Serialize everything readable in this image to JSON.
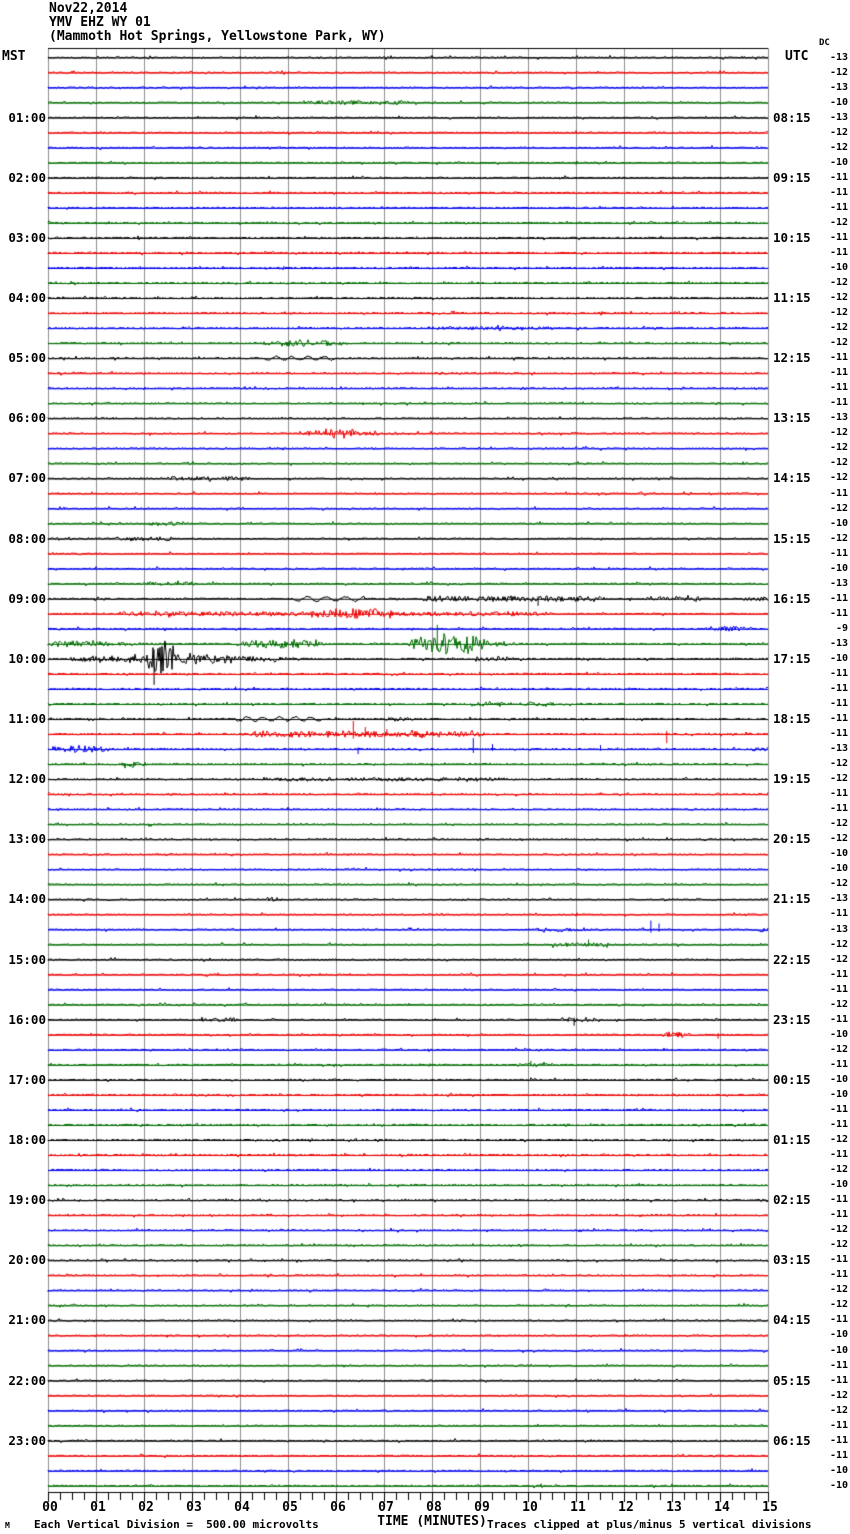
{
  "header": {
    "date": "Nov22,2014",
    "station": "YMV EHZ WY 01",
    "location": "(Mammoth Hot Springs, Yellowstone Park, WY)"
  },
  "axis": {
    "left_timezone": "MST",
    "right_timezone": "UTC",
    "dc_label": "DC",
    "x_title": "TIME (MINUTES)"
  },
  "footer": {
    "scale_note": "Each Vertical Division =  500.00 microvolts",
    "clip_note": "Traces clipped at plus/minus 5 vertical divisions",
    "corner_mark": "M"
  },
  "chart_data": {
    "type": "line",
    "subtype": "helicorder-seismogram",
    "title": "YMV EHZ WY 01 (Mammoth Hot Springs, Yellowstone Park, WY) Nov22,2014",
    "xlabel": "TIME (MINUTES)",
    "x_range": [
      0,
      15
    ],
    "x_ticks": [
      "00",
      "01",
      "02",
      "03",
      "04",
      "05",
      "06",
      "07",
      "08",
      "09",
      "10",
      "11",
      "12",
      "13",
      "14",
      "15"
    ],
    "grid": "vertical-minute-lines",
    "rows": 96,
    "minutes_per_row": 15,
    "label_every_n_rows": 4,
    "first_labeled_row": 4,
    "trace_colors_cycle": [
      "#000000",
      "#ee0000",
      "#0000ee",
      "#006d00"
    ],
    "left_time_labels": [
      "01:00",
      "02:00",
      "03:00",
      "04:00",
      "05:00",
      "06:00",
      "07:00",
      "08:00",
      "09:00",
      "10:00",
      "11:00",
      "12:00",
      "13:00",
      "14:00",
      "15:00",
      "16:00",
      "17:00",
      "18:00",
      "19:00",
      "20:00",
      "21:00",
      "22:00",
      "23:00"
    ],
    "right_time_labels": [
      "08:15",
      "09:15",
      "10:15",
      "11:15",
      "12:15",
      "13:15",
      "14:15",
      "15:15",
      "16:15",
      "17:15",
      "18:15",
      "19:15",
      "20:15",
      "21:15",
      "22:15",
      "23:15",
      "00:15",
      "01:15",
      "02:15",
      "03:15",
      "04:15",
      "05:15",
      "06:15"
    ],
    "dc_offsets": [
      -13,
      -12,
      -13,
      -10,
      -13,
      -12,
      -12,
      -10,
      -11,
      -11,
      -11,
      -12,
      -11,
      -11,
      -10,
      -12,
      -12,
      -12,
      -12,
      -12,
      -11,
      -11,
      -11,
      -11,
      -13,
      -12,
      -12,
      -12,
      -12,
      -11,
      -12,
      -10,
      -12,
      -11,
      -10,
      -13,
      -11,
      -11,
      -9,
      -13,
      -10,
      -11,
      -11,
      -11,
      -11,
      -11,
      -13,
      -12,
      -12,
      -11,
      -11,
      -12,
      -12,
      -10,
      -10,
      -12,
      -13,
      -11,
      -13,
      -12,
      -12,
      -11,
      -11,
      -12,
      -11,
      -10,
      -12,
      -11,
      -10,
      -10,
      -11,
      -11,
      -12,
      -11,
      -12,
      -10,
      -11,
      -11,
      -12,
      -12,
      -11,
      -11,
      -12,
      -12,
      -11,
      -10,
      -10,
      -11,
      -11,
      -12,
      -12,
      -11,
      -11,
      -11,
      -10,
      -10
    ],
    "events": [
      {
        "row": 3,
        "type": "fuzz",
        "t0": 5.3,
        "t1": 7.5,
        "amp": 1.6
      },
      {
        "row": 18,
        "type": "fuzz",
        "t0": 8.0,
        "t1": 10.5,
        "amp": 1.2
      },
      {
        "row": 19,
        "type": "burst",
        "t0": 4.4,
        "t1": 6.3,
        "amp": 3.2
      },
      {
        "row": 20,
        "type": "wave",
        "t0": 4.5,
        "t1": 6.0,
        "amp": 1.8,
        "freq": 3
      },
      {
        "row": 25,
        "type": "burst",
        "t0": 5.3,
        "t1": 6.7,
        "amp": 4.5
      },
      {
        "row": 25,
        "type": "decay",
        "t0": 6.7,
        "t1": 8.0,
        "amp": 1.8
      },
      {
        "row": 28,
        "type": "fuzz",
        "t0": 2.5,
        "t1": 4.2,
        "amp": 1.7
      },
      {
        "row": 31,
        "type": "fuzz",
        "t0": 2.1,
        "t1": 2.9,
        "amp": 1.8
      },
      {
        "row": 32,
        "type": "fuzz",
        "t0": 1.4,
        "t1": 2.6,
        "amp": 1.7
      },
      {
        "row": 35,
        "type": "fuzz",
        "t0": 2.0,
        "t1": 3.1,
        "amp": 1.7
      },
      {
        "row": 36,
        "type": "wave",
        "t0": 5.1,
        "t1": 6.6,
        "amp": 2.2,
        "freq": 2.5
      },
      {
        "row": 36,
        "type": "fuzz",
        "t0": 7.8,
        "t1": 11.6,
        "amp": 2.6
      },
      {
        "row": 36,
        "type": "spike",
        "t0": 10.2,
        "amp": 7,
        "dir": -1
      },
      {
        "row": 36,
        "type": "fuzz",
        "t0": 12.4,
        "t1": 13.6,
        "amp": 1.8
      },
      {
        "row": 36,
        "type": "fuzz",
        "t0": 14.5,
        "t1": 15,
        "amp": 1.8
      },
      {
        "row": 37,
        "type": "fuzz",
        "t0": 1.5,
        "t1": 10.5,
        "amp": 1.8
      },
      {
        "row": 37,
        "type": "burst",
        "t0": 5.4,
        "t1": 7.2,
        "amp": 4.0
      },
      {
        "row": 38,
        "type": "fuzz",
        "t0": 13.7,
        "t1": 14.5,
        "amp": 2.0
      },
      {
        "row": 39,
        "type": "decay",
        "t0": 0,
        "t1": 2.6,
        "amp": 3.4
      },
      {
        "row": 39,
        "type": "burst",
        "t0": 3.9,
        "t1": 5.8,
        "amp": 5.0
      },
      {
        "row": 39,
        "type": "burst",
        "t0": 7.5,
        "t1": 9.3,
        "amp": 12
      },
      {
        "row": 39,
        "type": "spike",
        "t0": 8.1,
        "amp": 19,
        "dir": 1
      },
      {
        "row": 39,
        "type": "decay",
        "t0": 9.3,
        "t1": 10.2,
        "amp": 2.5
      },
      {
        "row": 40,
        "type": "fuzz",
        "t0": 0.5,
        "t1": 2.0,
        "amp": 2.6
      },
      {
        "row": 40,
        "type": "burst",
        "t0": 2.0,
        "t1": 2.75,
        "amp": 19
      },
      {
        "row": 40,
        "type": "spike",
        "t0": 2.2,
        "amp": 26,
        "dir": -1
      },
      {
        "row": 40,
        "type": "decay",
        "t0": 2.75,
        "t1": 5.6,
        "amp": 6
      },
      {
        "row": 40,
        "type": "fuzz",
        "t0": 8.9,
        "t1": 9.7,
        "amp": 2.2
      },
      {
        "row": 42,
        "type": "spike",
        "t0": 3.9,
        "amp": 2.5,
        "dir": 1
      },
      {
        "row": 43,
        "type": "burst",
        "t0": 8.8,
        "t1": 9.7,
        "amp": 2.6
      },
      {
        "row": 43,
        "type": "burst",
        "t0": 9.8,
        "t1": 10.6,
        "amp": 2.6
      },
      {
        "row": 44,
        "type": "wave",
        "t0": 3.9,
        "t1": 5.7,
        "amp": 2.0,
        "freq": 3
      },
      {
        "row": 44,
        "type": "fuzz",
        "t0": 7.0,
        "t1": 7.5,
        "amp": 1.6
      },
      {
        "row": 45,
        "type": "fuzz",
        "t0": 4.2,
        "t1": 8.2,
        "amp": 2.8
      },
      {
        "row": 45,
        "type": "spike",
        "t0": 6.35,
        "amp": 13,
        "dir": 1
      },
      {
        "row": 45,
        "type": "spike",
        "t0": 6.6,
        "amp": 7,
        "dir": 1
      },
      {
        "row": 45,
        "type": "spike",
        "t0": 7.05,
        "amp": 5,
        "dir": 1
      },
      {
        "row": 45,
        "type": "fuzz",
        "t0": 8.3,
        "t1": 9.1,
        "amp": 2.6
      },
      {
        "row": 45,
        "type": "spike",
        "t0": 12.88,
        "amp": 9,
        "dir": -1
      },
      {
        "row": 46,
        "type": "fuzz",
        "t0": 0.1,
        "t1": 1.3,
        "amp": 2.8
      },
      {
        "row": 46,
        "type": "spike",
        "t0": 6.45,
        "amp": 5,
        "dir": -1
      },
      {
        "row": 46,
        "type": "spike",
        "t0": 8.85,
        "amp": 11,
        "dir": 1
      },
      {
        "row": 46,
        "type": "spike",
        "t0": 9.25,
        "amp": 5,
        "dir": 1
      },
      {
        "row": 46,
        "type": "spike",
        "t0": 11.5,
        "amp": 4,
        "dir": 1
      },
      {
        "row": 46,
        "type": "fuzz",
        "t0": 14.6,
        "t1": 15,
        "amp": 1.6
      },
      {
        "row": 47,
        "type": "burst",
        "t0": 1.5,
        "t1": 2.1,
        "amp": 3.2
      },
      {
        "row": 48,
        "type": "fuzz",
        "t0": 4.5,
        "t1": 9.5,
        "amp": 1.4
      },
      {
        "row": 56,
        "type": "burst",
        "t0": 4.5,
        "t1": 4.9,
        "amp": 2.4
      },
      {
        "row": 58,
        "type": "fuzz",
        "t0": 10.2,
        "t1": 11.3,
        "amp": 1.5
      },
      {
        "row": 58,
        "type": "spike",
        "t0": 12.55,
        "amp": 9,
        "dir": 1
      },
      {
        "row": 58,
        "type": "spike",
        "t0": 12.72,
        "amp": 6,
        "dir": 1
      },
      {
        "row": 58,
        "type": "fuzz",
        "t0": 14.8,
        "t1": 15,
        "amp": 2.2
      },
      {
        "row": 59,
        "type": "fuzz",
        "t0": 10.5,
        "t1": 11.7,
        "amp": 1.8
      },
      {
        "row": 59,
        "type": "spike",
        "t0": 11.25,
        "amp": 5,
        "dir": 1
      },
      {
        "row": 64,
        "type": "fuzz",
        "t0": 3.2,
        "t1": 3.9,
        "amp": 2.0
      },
      {
        "row": 64,
        "type": "fuzz",
        "t0": 10.7,
        "t1": 11.4,
        "amp": 1.8
      },
      {
        "row": 64,
        "type": "spike",
        "t0": 10.95,
        "amp": 6,
        "dir": -1
      },
      {
        "row": 65,
        "type": "fuzz",
        "t0": 12.8,
        "t1": 13.4,
        "amp": 2.4
      },
      {
        "row": 65,
        "type": "spike",
        "t0": 13.95,
        "amp": 4,
        "dir": -1
      },
      {
        "row": 67,
        "type": "fuzz",
        "t0": 9.9,
        "t1": 10.4,
        "amp": 1.4
      },
      {
        "row": 67,
        "type": "spike",
        "t0": 10.05,
        "amp": 4,
        "dir": 1
      }
    ]
  }
}
